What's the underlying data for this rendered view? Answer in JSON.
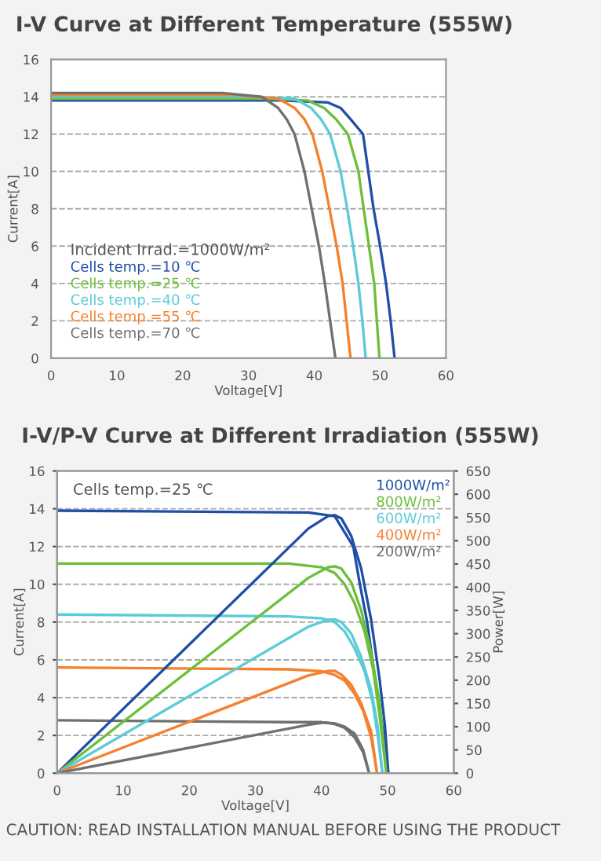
{
  "chart_data": [
    {
      "type": "line",
      "title": "I-V Curve at Different Temperature (555W)",
      "xlabel": "Voltage[V]",
      "ylabel": "Current[A]",
      "legend_title": "Incident Irrad.=1000W/m²",
      "legend": "bottom left",
      "grid": "y",
      "xlim": [
        0,
        60
      ],
      "xticks": [
        0,
        10,
        20,
        30,
        40,
        50,
        60
      ],
      "ylim": [
        0,
        16
      ],
      "yticks": [
        0,
        2,
        4,
        6,
        8,
        10,
        12,
        14,
        16
      ],
      "series": [
        {
          "name": "Cells temp.=10 ℃",
          "color": "#1f4fa8",
          "x": [
            0,
            35,
            42,
            44,
            45.5,
            47.4,
            48.2,
            49,
            50,
            50.9,
            51.6,
            52.2
          ],
          "values": [
            13.8,
            13.8,
            13.7,
            13.4,
            12.8,
            12,
            10,
            8,
            6,
            4,
            2,
            0
          ]
        },
        {
          "name": "Cells temp.=25 ℃",
          "color": "#6cbf3a",
          "x": [
            0,
            32,
            39,
            41.5,
            43.3,
            45.1,
            46.7,
            47.5,
            48.3,
            49.1,
            49.5,
            49.9
          ],
          "values": [
            13.9,
            13.9,
            13.8,
            13.4,
            12.8,
            12,
            10,
            8,
            6,
            4,
            2,
            0
          ]
        },
        {
          "name": "Cells temp.=40 ℃",
          "color": "#5ccbd8",
          "x": [
            0,
            30,
            37,
            39.5,
            41,
            42.4,
            44,
            45,
            45.9,
            46.7,
            47.3,
            47.8
          ],
          "values": [
            14.0,
            14.0,
            13.9,
            13.4,
            12.8,
            12,
            10,
            8,
            6,
            4,
            2,
            0
          ]
        },
        {
          "name": "Cells temp.=55 ℃",
          "color": "#f5812f",
          "x": [
            0,
            28,
            34.5,
            37,
            38.5,
            39.7,
            41.2,
            42.3,
            43.4,
            44.3,
            44.9,
            45.5
          ],
          "values": [
            14.1,
            14.1,
            13.9,
            13.4,
            12.8,
            12,
            10,
            8,
            6,
            4,
            2,
            0
          ]
        },
        {
          "name": "Cells temp.=70 ℃",
          "color": "#707070",
          "x": [
            0,
            26,
            32,
            34.5,
            35.8,
            37,
            38.5,
            39.6,
            40.7,
            41.6,
            42.4,
            43.2
          ],
          "values": [
            14.2,
            14.2,
            14.0,
            13.4,
            12.8,
            12,
            10,
            8,
            6,
            4,
            2,
            0
          ]
        }
      ]
    },
    {
      "type": "line",
      "title": "I-V/P-V Curve at Different Irradiation (555W)",
      "xlabel": "Voltage[V]",
      "ylabel": "Current[A]",
      "y2label": "Power[W]",
      "legend": "top right",
      "grid": "y",
      "annotations": [
        "Cells temp.=25 ℃",
        "CAUTION: READ INSTALLATION MANUAL BEFORE USING THE PRODUCT"
      ],
      "xlim": [
        0,
        60
      ],
      "xticks": [
        0,
        10,
        20,
        30,
        40,
        50,
        60
      ],
      "ylim": [
        0,
        16
      ],
      "yticks": [
        0,
        2,
        4,
        6,
        8,
        10,
        12,
        14,
        16
      ],
      "y2lim": [
        0,
        650
      ],
      "y2ticks": [
        0,
        50,
        100,
        150,
        200,
        250,
        300,
        350,
        400,
        450,
        500,
        550,
        600,
        650
      ],
      "series": [
        {
          "name": "1000W/m²",
          "color": "#1f4fa8",
          "x": [
            0,
            38,
            42,
            44.8,
            45.8,
            46.9,
            48.5,
            49.4,
            50.1
          ],
          "values": [
            13.9,
            13.8,
            13.6,
            12,
            10,
            8,
            4,
            2,
            0
          ]
        },
        {
          "name": "800W/m²",
          "color": "#6cbf3a",
          "x": [
            0,
            35,
            40,
            42,
            43.5,
            45,
            46.5,
            47.8,
            48.8,
            49.8
          ],
          "values": [
            11.1,
            11.1,
            10.9,
            10.6,
            10,
            9,
            7.5,
            5.5,
            3,
            0
          ]
        },
        {
          "name": "600W/m²",
          "color": "#5ccbd8",
          "x": [
            0,
            35,
            40,
            42,
            43.5,
            45,
            46.5,
            47.7,
            48.5,
            49.2
          ],
          "values": [
            8.4,
            8.3,
            8.2,
            8.0,
            7.5,
            6.6,
            5.4,
            3.8,
            2,
            0
          ]
        },
        {
          "name": "400W/m²",
          "color": "#f5812f",
          "x": [
            0,
            35,
            40,
            42,
            43.5,
            45,
            46.3,
            47.5,
            48.4
          ],
          "values": [
            5.6,
            5.5,
            5.4,
            5.2,
            4.9,
            4.2,
            3.3,
            1.9,
            0
          ]
        },
        {
          "name": "200W/m²",
          "color": "#707070",
          "x": [
            0,
            35,
            40,
            42,
            43.5,
            45,
            46.3,
            47.2
          ],
          "values": [
            2.8,
            2.7,
            2.7,
            2.6,
            2.4,
            1.9,
            1.1,
            0
          ]
        },
        {
          "axis": "y2",
          "color": "#1f4fa8",
          "x": [
            0,
            38,
            41,
            42,
            43,
            44.5,
            46,
            47.5,
            48.8,
            49.6,
            50.1
          ],
          "values": [
            0,
            526,
            553,
            555,
            548,
            510,
            440,
            330,
            200,
            100,
            0
          ]
        },
        {
          "axis": "y2",
          "color": "#6cbf3a",
          "x": [
            0,
            38,
            41,
            42,
            43,
            44.5,
            46,
            47.5,
            48.8,
            49.8
          ],
          "values": [
            0,
            420,
            443,
            445,
            440,
            410,
            350,
            260,
            150,
            0
          ]
        },
        {
          "axis": "y2",
          "color": "#5ccbd8",
          "x": [
            0,
            38,
            41,
            42,
            43,
            44.5,
            46,
            47.5,
            48.5,
            49.2
          ],
          "values": [
            0,
            315,
            330,
            331,
            325,
            300,
            250,
            180,
            100,
            0
          ]
        },
        {
          "axis": "y2",
          "color": "#f5812f",
          "x": [
            0,
            38,
            41,
            42,
            43,
            44.5,
            46,
            47.5,
            48.4
          ],
          "values": [
            0,
            210,
            220,
            220,
            212,
            190,
            150,
            90,
            0
          ]
        },
        {
          "axis": "y2",
          "color": "#707070",
          "x": [
            0,
            38,
            40.5,
            42,
            43.5,
            45,
            46.3,
            47.2
          ],
          "values": [
            0,
            104,
            109,
            107,
            100,
            85,
            50,
            0
          ]
        }
      ]
    }
  ]
}
